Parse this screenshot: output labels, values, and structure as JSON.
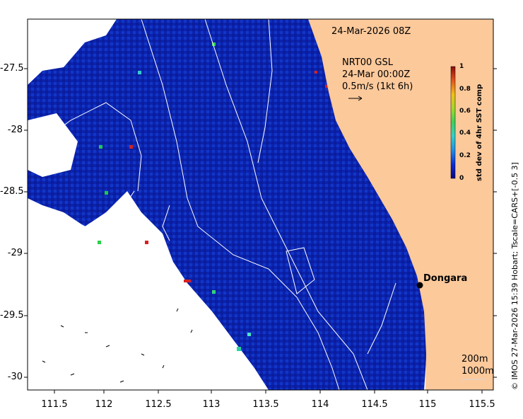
{
  "map": {
    "timestamp": "24-Mar-2026 08Z",
    "current_source": "NRT00 GSL",
    "current_time": "24-Mar 00:00Z",
    "current_scale": "0.5m/s (1kt 6h)",
    "place_name": "Dongara",
    "contour_200": "200m",
    "contour_1000": "1000m",
    "credit": "© IMOS 27-Mar-2026 15:39 Hobart; Tscale=CARS+[-0.5 3]",
    "x_ticks": [
      "111.5",
      "112",
      "112.5",
      "113",
      "113.5",
      "114",
      "114.5",
      "115",
      "115.5"
    ],
    "y_ticks": [
      "-27.5",
      "-28",
      "-28.5",
      "-29",
      "-29.5",
      "-30"
    ],
    "colors": {
      "land": "#fcc99b",
      "ocean_base": "#0a1fa8",
      "contour": "#ffffff"
    }
  },
  "colorbar": {
    "label": "std dev of 4hr SST comp",
    "ticks": [
      "1",
      "0.8",
      "0.6",
      "0.4",
      "0.2",
      "0"
    ],
    "range": [
      0,
      1
    ]
  }
}
